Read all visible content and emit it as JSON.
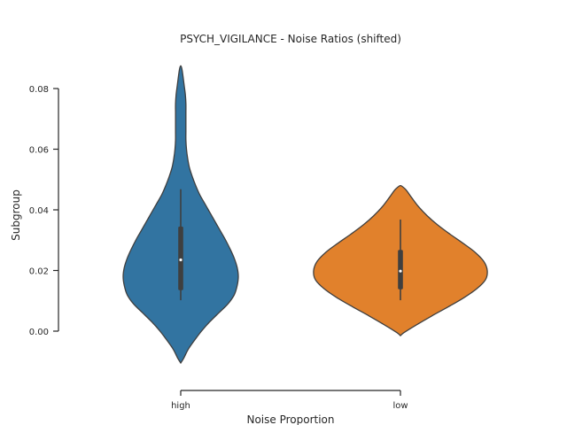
{
  "chart_data": {
    "type": "violin",
    "title": "PSYCH_VIGILANCE - Noise Ratios (shifted)",
    "xlabel": "Noise Proportion",
    "ylabel": "Subgroup",
    "categories": [
      "high",
      "low"
    ],
    "ylim": [
      -0.011,
      0.087
    ],
    "yticks": [
      0.0,
      0.02,
      0.04,
      0.06,
      0.08
    ],
    "ytick_labels": [
      "0.00",
      "0.02",
      "0.04",
      "0.06",
      "0.08"
    ],
    "grid": false,
    "series": [
      {
        "category": "high",
        "color": "#3274a1",
        "min": -0.0105,
        "max": 0.0875,
        "whisker_low": 0.0102,
        "whisker_high": 0.0468,
        "q1": 0.0135,
        "q3": 0.0345,
        "median": 0.0235,
        "density": [
          [
            -0.0105,
            0.0
          ],
          [
            -0.009,
            0.05
          ],
          [
            -0.006,
            0.13
          ],
          [
            -0.003,
            0.24
          ],
          [
            0.0,
            0.36
          ],
          [
            0.003,
            0.5
          ],
          [
            0.006,
            0.66
          ],
          [
            0.009,
            0.82
          ],
          [
            0.012,
            0.93
          ],
          [
            0.015,
            0.98
          ],
          [
            0.018,
            1.0
          ],
          [
            0.021,
            0.98
          ],
          [
            0.024,
            0.93
          ],
          [
            0.027,
            0.86
          ],
          [
            0.03,
            0.78
          ],
          [
            0.033,
            0.69
          ],
          [
            0.036,
            0.6
          ],
          [
            0.039,
            0.51
          ],
          [
            0.042,
            0.42
          ],
          [
            0.045,
            0.33
          ],
          [
            0.048,
            0.26
          ],
          [
            0.051,
            0.2
          ],
          [
            0.054,
            0.15
          ],
          [
            0.057,
            0.12
          ],
          [
            0.06,
            0.1
          ],
          [
            0.063,
            0.09
          ],
          [
            0.066,
            0.09
          ],
          [
            0.069,
            0.09
          ],
          [
            0.072,
            0.09
          ],
          [
            0.075,
            0.09
          ],
          [
            0.078,
            0.08
          ],
          [
            0.081,
            0.06
          ],
          [
            0.084,
            0.04
          ],
          [
            0.0865,
            0.02
          ],
          [
            0.0875,
            0.0
          ]
        ]
      },
      {
        "category": "low",
        "color": "#e1812c",
        "min": -0.0015,
        "max": 0.048,
        "whisker_low": 0.0102,
        "whisker_high": 0.0368,
        "q1": 0.0138,
        "q3": 0.0268,
        "median": 0.0198,
        "density": [
          [
            -0.0015,
            0.0
          ],
          [
            -0.0005,
            0.04
          ],
          [
            0.002,
            0.18
          ],
          [
            0.005,
            0.36
          ],
          [
            0.008,
            0.55
          ],
          [
            0.011,
            0.73
          ],
          [
            0.014,
            0.88
          ],
          [
            0.017,
            0.98
          ],
          [
            0.02,
            1.0
          ],
          [
            0.023,
            0.96
          ],
          [
            0.026,
            0.86
          ],
          [
            0.029,
            0.72
          ],
          [
            0.032,
            0.57
          ],
          [
            0.035,
            0.43
          ],
          [
            0.038,
            0.31
          ],
          [
            0.041,
            0.21
          ],
          [
            0.044,
            0.13
          ],
          [
            0.046,
            0.08
          ],
          [
            0.047,
            0.05
          ],
          [
            0.048,
            0.0
          ]
        ]
      }
    ]
  }
}
